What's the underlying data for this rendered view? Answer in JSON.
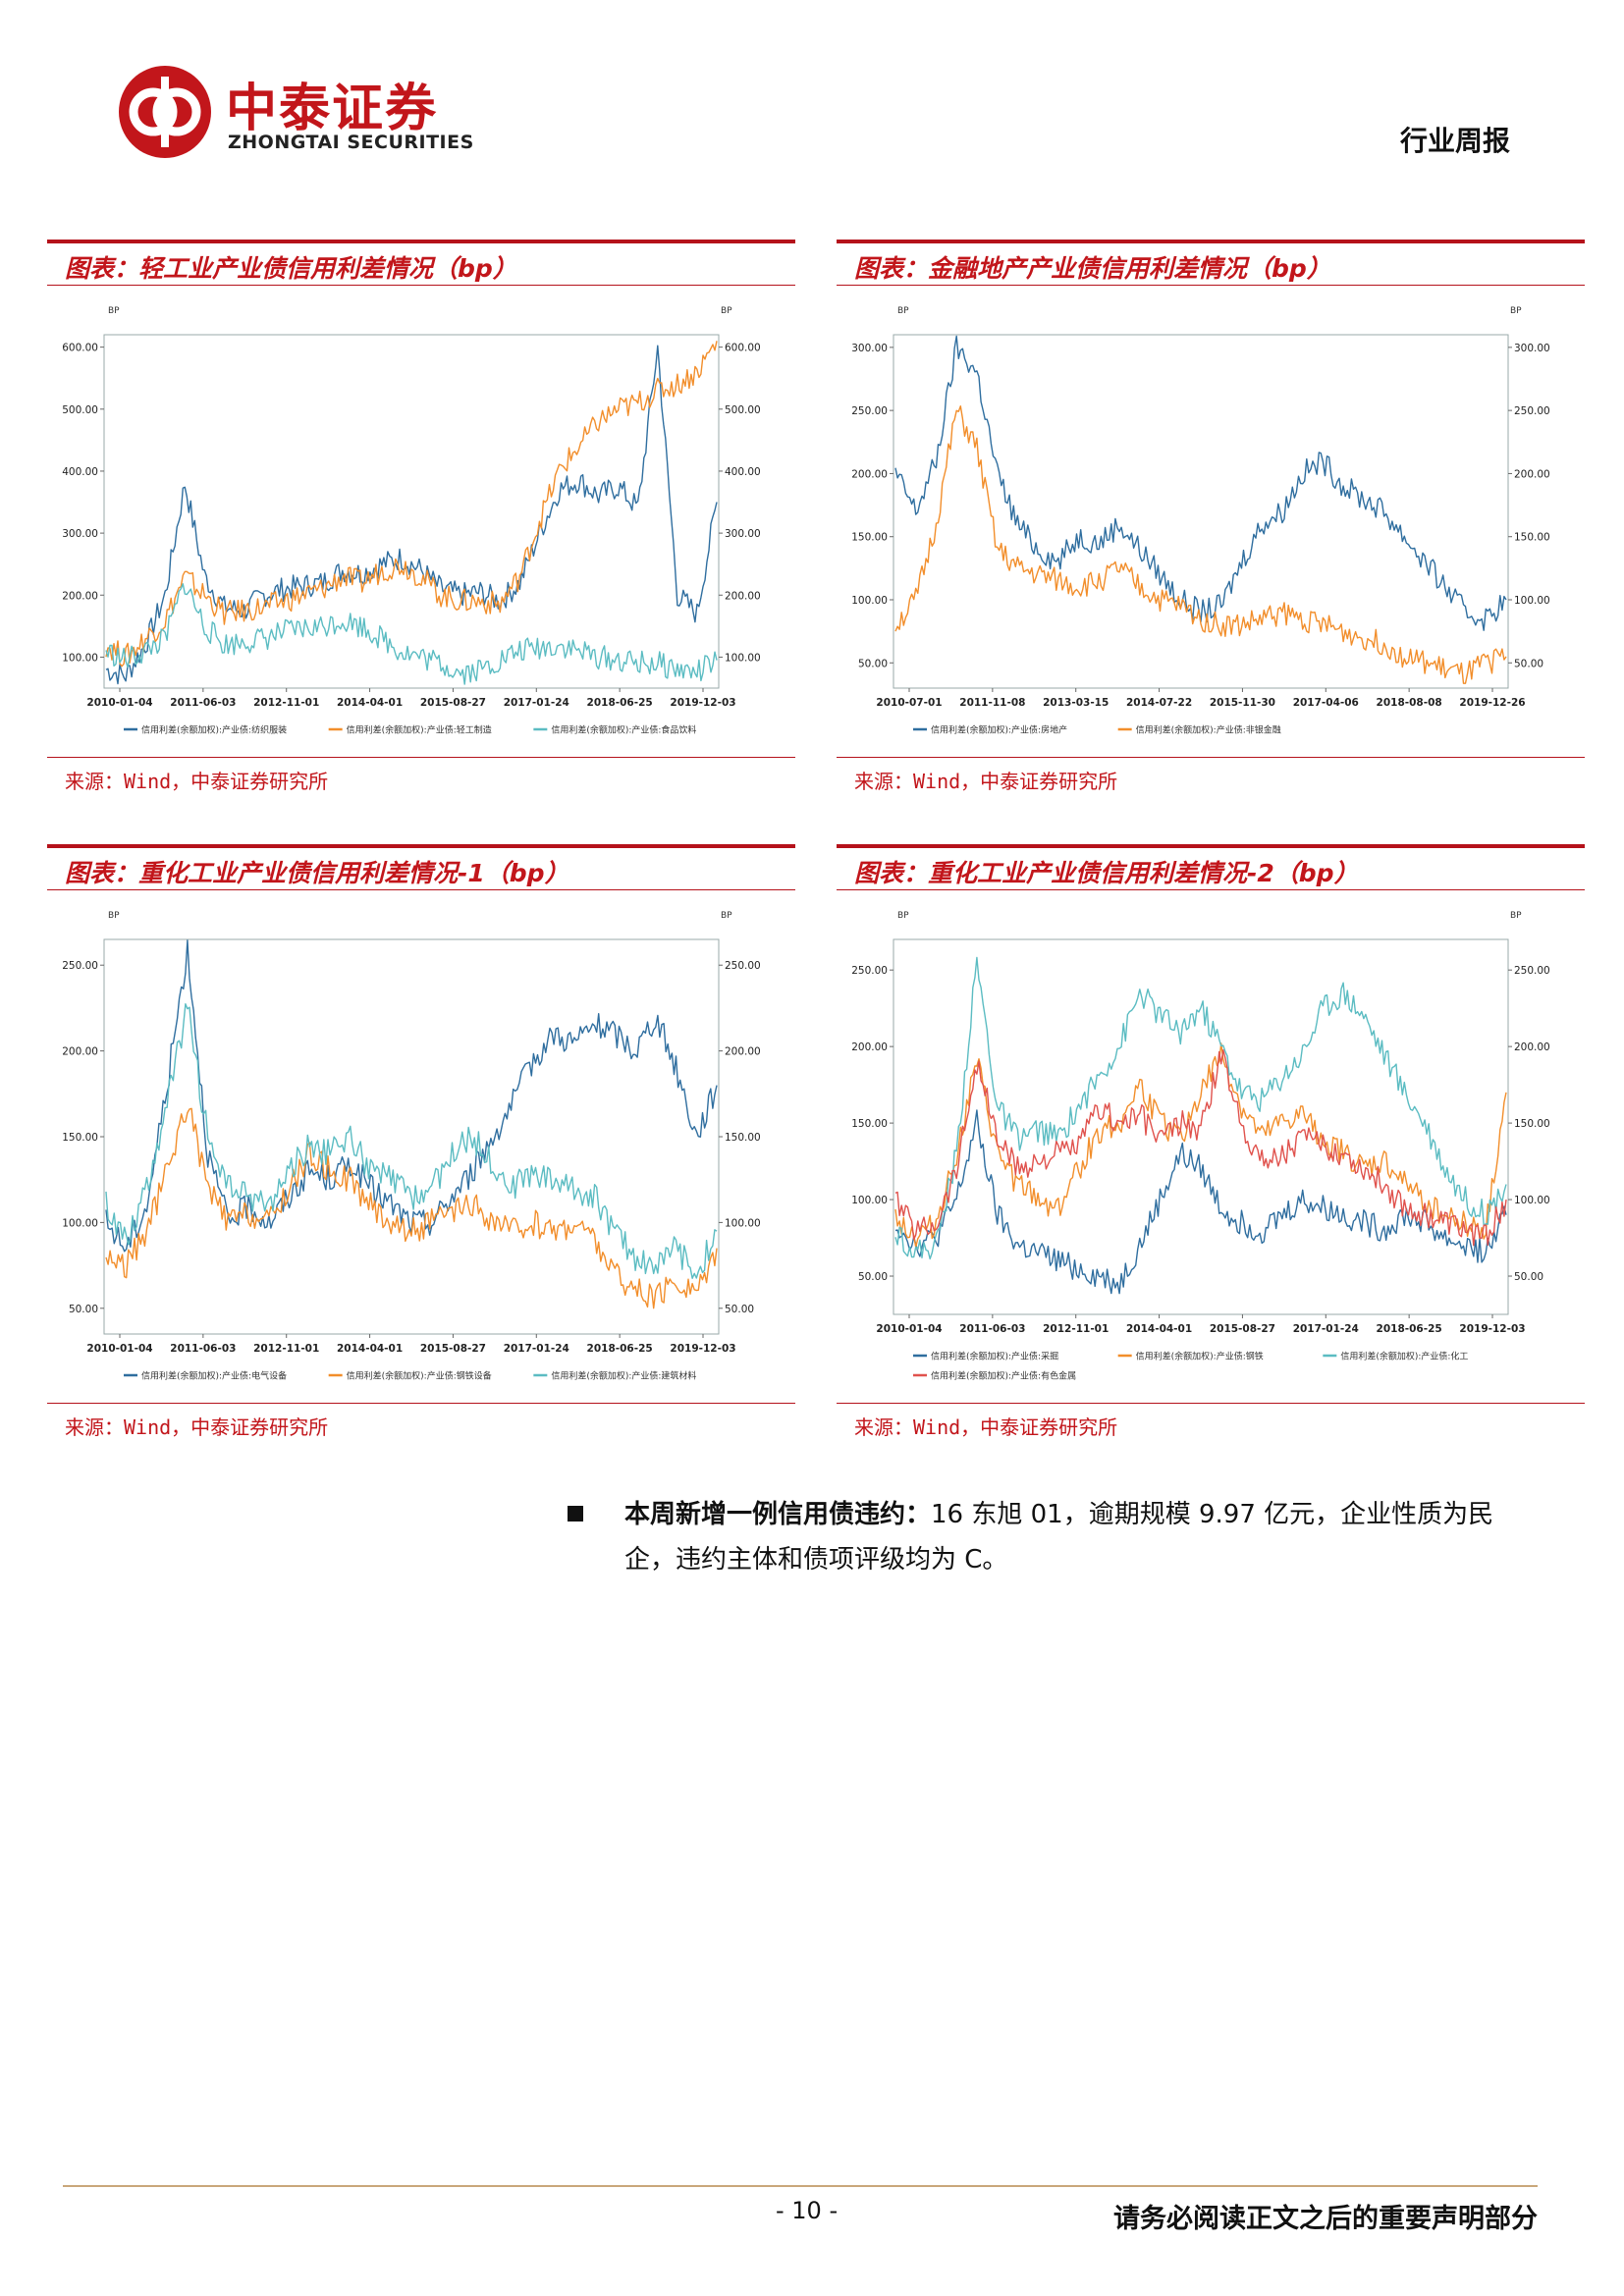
{
  "header": {
    "logo_cn": "中泰证券",
    "logo_en": "ZHONGTAI SECURITIES",
    "report_type": "行业周报"
  },
  "colors": {
    "accent": "#c2161b",
    "series_blue": "#2f6e9f",
    "series_orange": "#f28e2b",
    "series_teal": "#5bbcc2",
    "series_red": "#e0524d"
  },
  "panels": [
    {
      "title": "图表：轻工业产业债信用利差情况（bp）",
      "source": "来源：Wind，中泰证券研究所",
      "chart_data": {
        "type": "line",
        "title": "图表：轻工业产业债信用利差情况（bp）",
        "unit_left": "BP",
        "unit_right": "BP",
        "yticks": [
          "600.00",
          "500.00",
          "400.00",
          "300.00",
          "200.00",
          "100.00"
        ],
        "ylim": [
          50,
          620
        ],
        "xticks": [
          "2010-01-04",
          "2011-06-03",
          "2012-11-01",
          "2014-04-01",
          "2015-08-27",
          "2017-01-24",
          "2018-06-25",
          "2019-12-03"
        ],
        "brand": "Wind",
        "series": [
          {
            "name": "信用利差(余额加权):产业债:纺织服装",
            "color": "#2f6e9f",
            "values": [
              80,
              70,
              120,
              200,
              380,
              230,
              180,
              175,
              200,
              210,
              215,
              220,
              240,
              235,
              250,
              260,
              240,
              210,
              200,
              205,
              190,
              220,
              300,
              370,
              385,
              360,
              375,
              340,
              600,
              200,
              170,
              350
            ]
          },
          {
            "name": "信用利差(余额加权):产业债:轻工制造",
            "color": "#f28e2b",
            "values": [
              120,
              100,
              130,
              160,
              230,
              200,
              170,
              175,
              180,
              190,
              200,
              210,
              230,
              220,
              240,
              250,
              230,
              200,
              190,
              190,
              185,
              230,
              320,
              400,
              440,
              480,
              500,
              510,
              530,
              540,
              560,
              610
            ]
          },
          {
            "name": "信用利差(余额加权):产业债:食品饮料",
            "color": "#5bbcc2",
            "values": [
              110,
              95,
              110,
              130,
              220,
              150,
              120,
              125,
              130,
              140,
              145,
              150,
              160,
              150,
              130,
              110,
              100,
              90,
              75,
              80,
              95,
              110,
              115,
              120,
              110,
              100,
              95,
              90,
              90,
              80,
              75,
              95
            ]
          }
        ]
      }
    },
    {
      "title": "图表：金融地产产业债信用利差情况（bp）",
      "source": "来源：Wind，中泰证券研究所",
      "chart_data": {
        "type": "line",
        "title": "图表：金融地产产业债信用利差情况（bp）",
        "unit_left": "BP",
        "unit_right": "BP",
        "yticks": [
          "300.00",
          "250.00",
          "200.00",
          "150.00",
          "100.00",
          "50.00"
        ],
        "ylim": [
          30,
          310
        ],
        "xticks": [
          "2010-07-01",
          "2011-11-08",
          "2013-03-15",
          "2014-07-22",
          "2015-11-30",
          "2017-04-06",
          "2018-08-08",
          "2019-12-26"
        ],
        "brand": "Wind",
        "series": [
          {
            "name": "信用利差(余额加权):产业债:房地产",
            "color": "#2f6e9f",
            "values": [
              200,
              170,
              210,
              300,
              280,
              200,
              160,
              140,
              130,
              150,
              145,
              160,
              140,
              120,
              100,
              90,
              95,
              130,
              160,
              170,
              200,
              210,
              190,
              180,
              170,
              150,
              130,
              110,
              90,
              85,
              100
            ]
          },
          {
            "name": "信用利差(余额加权):产业债:非银金融",
            "color": "#f28e2b",
            "values": [
              80,
              100,
              160,
              250,
              220,
              140,
              125,
              120,
              115,
              110,
              115,
              125,
              110,
              100,
              95,
              85,
              80,
              80,
              85,
              90,
              85,
              80,
              75,
              70,
              65,
              55,
              50,
              45,
              40,
              50,
              55
            ]
          }
        ]
      }
    },
    {
      "title": "图表：重化工业产业债信用利差情况-1（bp）",
      "source": "来源：Wind，中泰证券研究所",
      "chart_data": {
        "type": "line",
        "title": "图表：重化工业产业债信用利差情况-1（bp）",
        "unit_left": "BP",
        "unit_right": "BP",
        "yticks": [
          "250.00",
          "200.00",
          "150.00",
          "100.00",
          "50.00"
        ],
        "ylim": [
          35,
          265
        ],
        "xticks": [
          "2010-01-04",
          "2011-06-03",
          "2012-11-01",
          "2014-04-01",
          "2015-08-27",
          "2017-01-24",
          "2018-06-25",
          "2019-12-03"
        ],
        "brand": "Wind",
        "series": [
          {
            "name": "信用利差(余额加权):产业债:电气设备",
            "color": "#2f6e9f",
            "values": [
              100,
              85,
              110,
              180,
              260,
              140,
              100,
              110,
              100,
              115,
              130,
              125,
              135,
              120,
              110,
              100,
              100,
              115,
              130,
              150,
              170,
              195,
              210,
              205,
              215,
              210,
              200,
              220,
              190,
              150,
              180
            ]
          },
          {
            "name": "信用利差(余额加权):产业债:钢铁设备",
            "color": "#f28e2b",
            "values": [
              80,
              75,
              95,
              130,
              170,
              120,
              100,
              105,
              100,
              120,
              140,
              130,
              125,
              110,
              100,
              95,
              100,
              105,
              110,
              100,
              95,
              100,
              95,
              100,
              90,
              70,
              60,
              55,
              65,
              60,
              85
            ]
          },
          {
            "name": "信用利差(余额加权):产业债:建筑材料",
            "color": "#5bbcc2",
            "values": [
              110,
              90,
              120,
              170,
              225,
              150,
              120,
              115,
              110,
              130,
              145,
              140,
              150,
              130,
              125,
              115,
              120,
              140,
              150,
              135,
              120,
              130,
              125,
              120,
              115,
              95,
              80,
              75,
              85,
              70,
              95
            ]
          }
        ]
      }
    },
    {
      "title": "图表：重化工业产业债信用利差情况-2（bp）",
      "source": "来源：Wind，中泰证券研究所",
      "chart_data": {
        "type": "line",
        "title": "图表：重化工业产业债信用利差情况-2（bp）",
        "unit_left": "BP",
        "unit_right": "BP",
        "yticks": [
          "250.00",
          "200.00",
          "150.00",
          "100.00",
          "50.00"
        ],
        "ylim": [
          25,
          270
        ],
        "xticks": [
          "2010-01-04",
          "2011-06-03",
          "2012-11-01",
          "2014-04-01",
          "2015-08-27",
          "2017-01-24",
          "2018-06-25",
          "2019-12-03"
        ],
        "brand": "Wind",
        "series": [
          {
            "name": "信用利差(余额加权):产业债:采掘",
            "color": "#2f6e9f",
            "values": [
              85,
              70,
              75,
              100,
              150,
              90,
              70,
              65,
              60,
              55,
              50,
              45,
              70,
              100,
              130,
              120,
              95,
              85,
              80,
              90,
              100,
              95,
              90,
              85,
              80,
              90,
              85,
              75,
              70,
              65,
              90
            ]
          },
          {
            "name": "信用利差(余额加权):产业债:钢铁",
            "color": "#f28e2b",
            "values": [
              90,
              75,
              85,
              130,
              190,
              130,
              110,
              100,
              95,
              120,
              145,
              150,
              175,
              150,
              140,
              170,
              195,
              160,
              140,
              150,
              155,
              140,
              130,
              120,
              125,
              110,
              100,
              90,
              85,
              80,
              170
            ]
          },
          {
            "name": "信用利差(余额加权):产业债:化工",
            "color": "#5bbcc2",
            "values": [
              80,
              65,
              70,
              130,
              255,
              160,
              140,
              145,
              140,
              160,
              180,
              200,
              235,
              220,
              210,
              225,
              200,
              170,
              165,
              180,
              195,
              225,
              235,
              220,
              195,
              170,
              150,
              120,
              100,
              90,
              110
            ]
          },
          {
            "name": "信用利差(余额加权):产业债:有色金属",
            "color": "#e0524d",
            "values": [
              100,
              80,
              85,
              120,
              190,
              140,
              120,
              125,
              130,
              135,
              160,
              150,
              155,
              140,
              150,
              145,
              195,
              150,
              125,
              130,
              140,
              135,
              130,
              120,
              110,
              95,
              90,
              85,
              80,
              75,
              100
            ]
          }
        ]
      }
    }
  ],
  "bullet": {
    "lead": "本周新增一例信用债违约：",
    "text": "16 东旭 01，逾期规模 9.97 亿元，企业性质为民企，违约主体和债项评级均为 C。"
  },
  "footer": {
    "page_number": "- 10 -",
    "note": "请务必阅读正文之后的重要声明部分"
  }
}
